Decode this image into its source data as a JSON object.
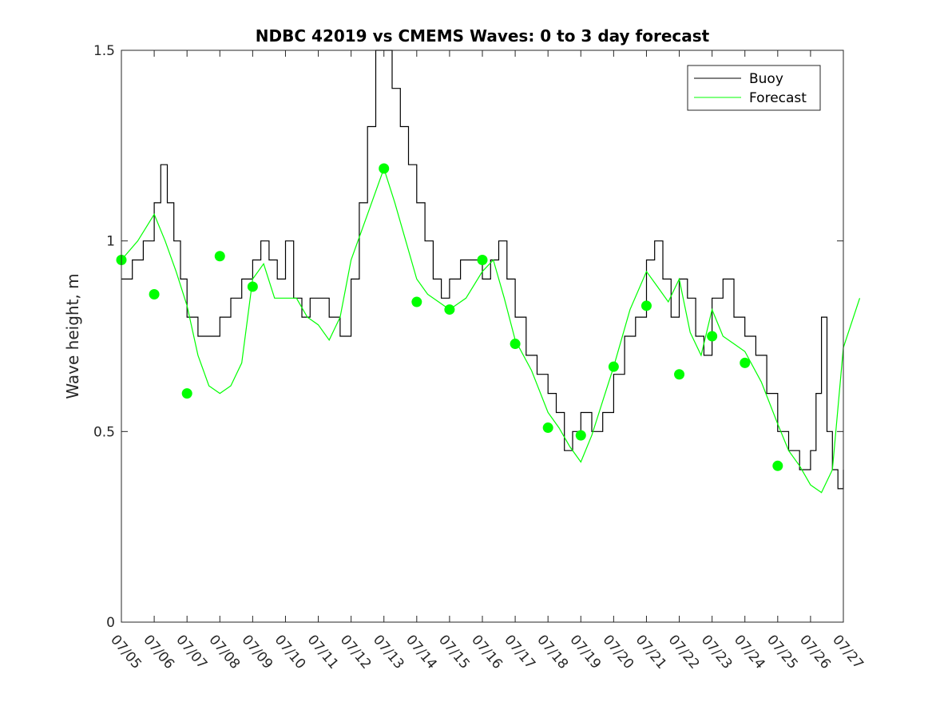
{
  "chart_data": {
    "type": "line",
    "title": "NDBC 42019 vs CMEMS Waves: 0 to 3 day forecast",
    "xlabel": "",
    "ylabel": "Wave height, m",
    "ylim": [
      0,
      1.5
    ],
    "yticks": [
      0,
      0.5,
      1,
      1.5
    ],
    "ytick_labels": [
      "0",
      "0.5",
      "1",
      "1.5"
    ],
    "xlim": [
      "07/05",
      "07/27"
    ],
    "xtick_labels": [
      "07/05",
      "07/06",
      "07/07",
      "07/08",
      "07/09",
      "07/10",
      "07/11",
      "07/12",
      "07/13",
      "07/14",
      "07/15",
      "07/16",
      "07/17",
      "07/18",
      "07/19",
      "07/20",
      "07/21",
      "07/22",
      "07/23",
      "07/24",
      "07/25",
      "07/26",
      "07/27"
    ],
    "legend": {
      "position": "top-right",
      "entries": [
        "Buoy",
        "Forecast"
      ]
    },
    "colors": {
      "buoy": "#000000",
      "forecast": "#00ff00",
      "axes": "#262626"
    },
    "series": [
      {
        "name": "Buoy",
        "points": [
          [
            "07/05",
            0.9
          ],
          [
            "07/05",
            0.95
          ],
          [
            "07/05",
            1.0
          ],
          [
            "07/06",
            1.1
          ],
          [
            "07/06",
            1.2
          ],
          [
            "07/06",
            1.1
          ],
          [
            "07/06",
            1.0
          ],
          [
            "07/06",
            0.9
          ],
          [
            "07/07",
            0.8
          ],
          [
            "07/07",
            0.75
          ],
          [
            "07/07",
            0.75
          ],
          [
            "07/08",
            0.8
          ],
          [
            "07/08",
            0.85
          ],
          [
            "07/08",
            0.9
          ],
          [
            "07/09",
            0.95
          ],
          [
            "07/09",
            1.0
          ],
          [
            "07/09",
            0.95
          ],
          [
            "07/09",
            0.9
          ],
          [
            "07/10",
            1.0
          ],
          [
            "07/10",
            0.85
          ],
          [
            "07/10",
            0.8
          ],
          [
            "07/10",
            0.85
          ],
          [
            "07/11",
            0.85
          ],
          [
            "07/11",
            0.8
          ],
          [
            "07/11",
            0.75
          ],
          [
            "07/12",
            0.9
          ],
          [
            "07/12",
            1.1
          ],
          [
            "07/12",
            1.3
          ],
          [
            "07/12",
            1.5
          ],
          [
            "07/13",
            1.5
          ],
          [
            "07/13",
            1.4
          ],
          [
            "07/13",
            1.3
          ],
          [
            "07/13",
            1.2
          ],
          [
            "07/14",
            1.1
          ],
          [
            "07/14",
            1.0
          ],
          [
            "07/14",
            0.9
          ],
          [
            "07/14",
            0.85
          ],
          [
            "07/15",
            0.9
          ],
          [
            "07/15",
            0.95
          ],
          [
            "07/15",
            0.95
          ],
          [
            "07/16",
            0.9
          ],
          [
            "07/16",
            0.95
          ],
          [
            "07/16",
            1.0
          ],
          [
            "07/16",
            0.9
          ],
          [
            "07/17",
            0.8
          ],
          [
            "07/17",
            0.7
          ],
          [
            "07/17",
            0.65
          ],
          [
            "07/18",
            0.6
          ],
          [
            "07/18",
            0.55
          ],
          [
            "07/18",
            0.45
          ],
          [
            "07/18",
            0.5
          ],
          [
            "07/19",
            0.55
          ],
          [
            "07/19",
            0.5
          ],
          [
            "07/19",
            0.55
          ],
          [
            "07/20",
            0.65
          ],
          [
            "07/20",
            0.75
          ],
          [
            "07/20",
            0.8
          ],
          [
            "07/21",
            0.95
          ],
          [
            "07/21",
            1.0
          ],
          [
            "07/21",
            0.9
          ],
          [
            "07/21",
            0.8
          ],
          [
            "07/22",
            0.9
          ],
          [
            "07/22",
            0.85
          ],
          [
            "07/22",
            0.75
          ],
          [
            "07/22",
            0.7
          ],
          [
            "07/23",
            0.85
          ],
          [
            "07/23",
            0.9
          ],
          [
            "07/23",
            0.8
          ],
          [
            "07/24",
            0.75
          ],
          [
            "07/24",
            0.7
          ],
          [
            "07/24",
            0.6
          ],
          [
            "07/25",
            0.5
          ],
          [
            "07/25",
            0.45
          ],
          [
            "07/25",
            0.4
          ],
          [
            "07/26",
            0.45
          ],
          [
            "07/26",
            0.6
          ],
          [
            "07/26",
            0.8
          ],
          [
            "07/26",
            0.5
          ],
          [
            "07/26",
            0.4
          ],
          [
            "07/26",
            0.35
          ],
          [
            "07/27",
            0.4
          ]
        ]
      },
      {
        "name": "Forecast",
        "points": [
          [
            "07/05",
            0.95
          ],
          [
            "07/05",
            1.0
          ],
          [
            "07/06",
            1.07
          ],
          [
            "07/06",
            1.0
          ],
          [
            "07/06",
            0.92
          ],
          [
            "07/07",
            0.83
          ],
          [
            "07/07",
            0.7
          ],
          [
            "07/07",
            0.62
          ],
          [
            "07/08",
            0.6
          ],
          [
            "07/08",
            0.62
          ],
          [
            "07/08",
            0.68
          ],
          [
            "07/09",
            0.9
          ],
          [
            "07/09",
            0.94
          ],
          [
            "07/09",
            0.85
          ],
          [
            "07/10",
            0.85
          ],
          [
            "07/10",
            0.85
          ],
          [
            "07/10",
            0.8
          ],
          [
            "07/11",
            0.78
          ],
          [
            "07/11",
            0.74
          ],
          [
            "07/11",
            0.8
          ],
          [
            "07/12",
            0.95
          ],
          [
            "07/12",
            1.07
          ],
          [
            "07/13",
            1.19
          ],
          [
            "07/13",
            1.1
          ],
          [
            "07/13",
            1.0
          ],
          [
            "07/14",
            0.9
          ],
          [
            "07/14",
            0.86
          ],
          [
            "07/14",
            0.84
          ],
          [
            "07/15",
            0.82
          ],
          [
            "07/15",
            0.85
          ],
          [
            "07/16",
            0.92
          ],
          [
            "07/16",
            0.95
          ],
          [
            "07/16",
            0.85
          ],
          [
            "07/17",
            0.74
          ],
          [
            "07/17",
            0.66
          ],
          [
            "07/18",
            0.55
          ],
          [
            "07/18",
            0.51
          ],
          [
            "07/18",
            0.46
          ],
          [
            "07/19",
            0.42
          ],
          [
            "07/19",
            0.49
          ],
          [
            "07/19",
            0.58
          ],
          [
            "07/20",
            0.67
          ],
          [
            "07/20",
            0.82
          ],
          [
            "07/21",
            0.92
          ],
          [
            "07/21",
            0.88
          ],
          [
            "07/21",
            0.84
          ],
          [
            "07/22",
            0.9
          ],
          [
            "07/22",
            0.76
          ],
          [
            "07/22",
            0.7
          ],
          [
            "07/23",
            0.82
          ],
          [
            "07/23",
            0.75
          ],
          [
            "07/23",
            0.73
          ],
          [
            "07/24",
            0.71
          ],
          [
            "07/24",
            0.63
          ],
          [
            "07/25",
            0.52
          ],
          [
            "07/25",
            0.45
          ],
          [
            "07/25",
            0.41
          ],
          [
            "07/26",
            0.36
          ],
          [
            "07/26",
            0.34
          ],
          [
            "07/26",
            0.4
          ],
          [
            "07/27",
            0.72
          ],
          [
            "07/27",
            0.85
          ]
        ]
      }
    ],
    "forecast_initial_points": [
      [
        "07/05",
        0.95
      ],
      [
        "07/06",
        0.86
      ],
      [
        "07/07",
        0.6
      ],
      [
        "07/08",
        0.96
      ],
      [
        "07/09",
        0.88
      ],
      [
        "07/13",
        1.19
      ],
      [
        "07/14",
        0.84
      ],
      [
        "07/15",
        0.82
      ],
      [
        "07/16",
        0.95
      ],
      [
        "07/17",
        0.73
      ],
      [
        "07/18",
        0.51
      ],
      [
        "07/19",
        0.49
      ],
      [
        "07/20",
        0.67
      ],
      [
        "07/21",
        0.83
      ],
      [
        "07/22",
        0.65
      ],
      [
        "07/23",
        0.75
      ],
      [
        "07/24",
        0.68
      ],
      [
        "07/25",
        0.41
      ]
    ]
  }
}
